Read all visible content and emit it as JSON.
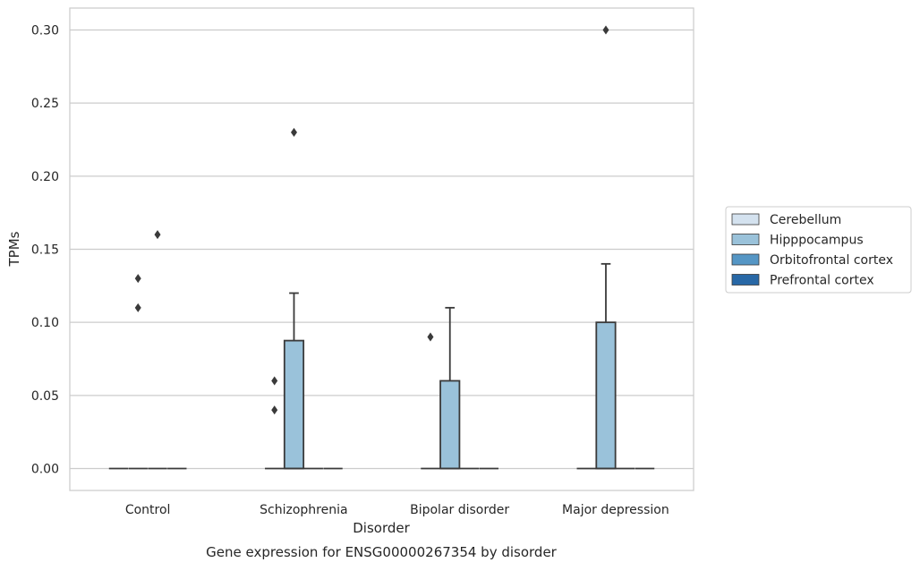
{
  "chart_data": {
    "type": "box",
    "title": "",
    "caption": "Gene expression for ENSG00000267354 by disorder",
    "xlabel": "Disorder",
    "ylabel": "TPMs",
    "ylim": [
      -0.015,
      0.315
    ],
    "yticks": [
      0.0,
      0.05,
      0.1,
      0.15,
      0.2,
      0.25,
      0.3
    ],
    "ytick_labels": [
      "0.00",
      "0.05",
      "0.10",
      "0.15",
      "0.20",
      "0.25",
      "0.30"
    ],
    "grid": true,
    "legend_position": "right-center",
    "categories": [
      "Control",
      "Schizophrenia",
      "Bipolar disorder",
      "Major depression"
    ],
    "series": [
      {
        "name": "Cerebellum",
        "color": "#d4e2ef",
        "boxes": [
          {
            "q1": 0,
            "median": 0,
            "q3": 0,
            "whislo": 0,
            "whishi": 0,
            "fliers": []
          },
          {
            "q1": 0,
            "median": 0,
            "q3": 0,
            "whislo": 0,
            "whishi": 0,
            "fliers": [
              0.04,
              0.06
            ]
          },
          {
            "q1": 0,
            "median": 0,
            "q3": 0,
            "whislo": 0,
            "whishi": 0,
            "fliers": [
              0.09
            ]
          },
          {
            "q1": 0,
            "median": 0,
            "q3": 0,
            "whislo": 0,
            "whishi": 0,
            "fliers": []
          }
        ]
      },
      {
        "name": "Hipppocampus",
        "color": "#9ac2da",
        "boxes": [
          {
            "q1": 0,
            "median": 0,
            "q3": 0,
            "whislo": 0,
            "whishi": 0,
            "fliers": [
              0.11,
              0.13
            ]
          },
          {
            "q1": 0,
            "median": 0,
            "q3": 0.0875,
            "whislo": 0,
            "whishi": 0.12,
            "fliers": [
              0.23
            ]
          },
          {
            "q1": 0,
            "median": 0,
            "q3": 0.06,
            "whislo": 0,
            "whishi": 0.11,
            "fliers": []
          },
          {
            "q1": 0,
            "median": 0,
            "q3": 0.1,
            "whislo": 0,
            "whishi": 0.14,
            "fliers": [
              0.3
            ]
          }
        ]
      },
      {
        "name": "Orbitofrontal cortex",
        "color": "#5596c5",
        "boxes": [
          {
            "q1": 0,
            "median": 0,
            "q3": 0,
            "whislo": 0,
            "whishi": 0,
            "fliers": [
              0.16
            ]
          },
          {
            "q1": 0,
            "median": 0,
            "q3": 0,
            "whislo": 0,
            "whishi": 0,
            "fliers": []
          },
          {
            "q1": 0,
            "median": 0,
            "q3": 0,
            "whislo": 0,
            "whishi": 0,
            "fliers": []
          },
          {
            "q1": 0,
            "median": 0,
            "q3": 0,
            "whislo": 0,
            "whishi": 0,
            "fliers": []
          }
        ]
      },
      {
        "name": "Prefrontal cortex",
        "color": "#2868a6",
        "boxes": [
          {
            "q1": 0,
            "median": 0,
            "q3": 0,
            "whislo": 0,
            "whishi": 0,
            "fliers": []
          },
          {
            "q1": 0,
            "median": 0,
            "q3": 0,
            "whislo": 0,
            "whishi": 0,
            "fliers": []
          },
          {
            "q1": 0,
            "median": 0,
            "q3": 0,
            "whislo": 0,
            "whishi": 0,
            "fliers": []
          },
          {
            "q1": 0,
            "median": 0,
            "q3": 0,
            "whislo": 0,
            "whishi": 0,
            "fliers": []
          }
        ]
      }
    ]
  }
}
